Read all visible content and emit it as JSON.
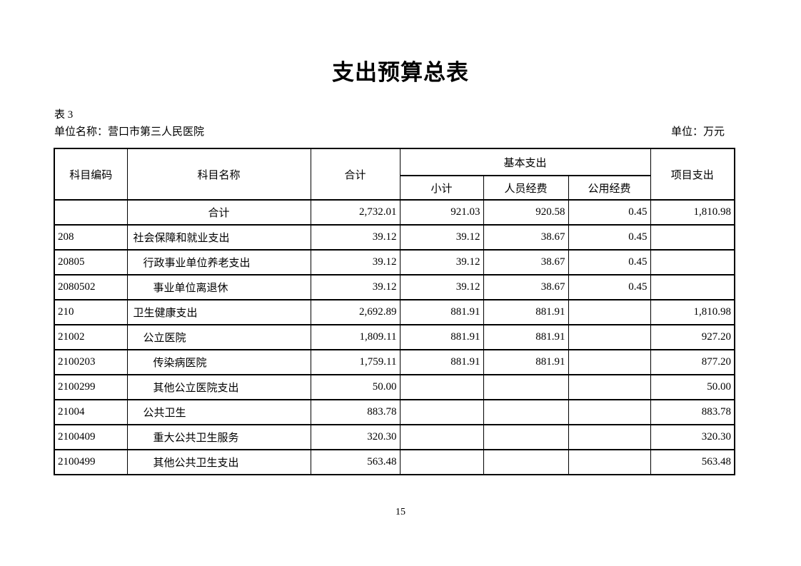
{
  "page": {
    "title": "支出预算总表",
    "table_label": "表 3",
    "unit_name": "单位名称：营口市第三人民医院",
    "unit_of_measure": "单位：万元",
    "page_number": "15"
  },
  "table": {
    "headers": {
      "code": "科目编码",
      "name": "科目名称",
      "total": "合计",
      "basic_group": "基本支出",
      "basic_subtotal": "小计",
      "personnel": "人员经费",
      "public_funds": "公用经费",
      "project": "项目支出"
    },
    "rows": [
      {
        "code": "",
        "name": "合计",
        "indent": 0,
        "name_align": "center",
        "total": "2,732.01",
        "subtotal": "921.03",
        "personnel": "920.58",
        "public": "0.45",
        "project": "1,810.98"
      },
      {
        "code": "208",
        "name": "社会保障和就业支出",
        "indent": 1,
        "name_align": "left",
        "total": "39.12",
        "subtotal": "39.12",
        "personnel": "38.67",
        "public": "0.45",
        "project": ""
      },
      {
        "code": "20805",
        "name": "行政事业单位养老支出",
        "indent": 2,
        "name_align": "left",
        "total": "39.12",
        "subtotal": "39.12",
        "personnel": "38.67",
        "public": "0.45",
        "project": ""
      },
      {
        "code": "2080502",
        "name": "事业单位离退休",
        "indent": 3,
        "name_align": "left",
        "total": "39.12",
        "subtotal": "39.12",
        "personnel": "38.67",
        "public": "0.45",
        "project": ""
      },
      {
        "code": "210",
        "name": "卫生健康支出",
        "indent": 1,
        "name_align": "left",
        "total": "2,692.89",
        "subtotal": "881.91",
        "personnel": "881.91",
        "public": "",
        "project": "1,810.98"
      },
      {
        "code": "21002",
        "name": "公立医院",
        "indent": 2,
        "name_align": "left",
        "total": "1,809.11",
        "subtotal": "881.91",
        "personnel": "881.91",
        "public": "",
        "project": "927.20"
      },
      {
        "code": "2100203",
        "name": "传染病医院",
        "indent": 3,
        "name_align": "left",
        "total": "1,759.11",
        "subtotal": "881.91",
        "personnel": "881.91",
        "public": "",
        "project": "877.20"
      },
      {
        "code": "2100299",
        "name": "其他公立医院支出",
        "indent": 3,
        "name_align": "left",
        "total": "50.00",
        "subtotal": "",
        "personnel": "",
        "public": "",
        "project": "50.00"
      },
      {
        "code": "21004",
        "name": "公共卫生",
        "indent": 2,
        "name_align": "left",
        "total": "883.78",
        "subtotal": "",
        "personnel": "",
        "public": "",
        "project": "883.78"
      },
      {
        "code": "2100409",
        "name": "重大公共卫生服务",
        "indent": 3,
        "name_align": "left",
        "total": "320.30",
        "subtotal": "",
        "personnel": "",
        "public": "",
        "project": "320.30"
      },
      {
        "code": "2100499",
        "name": "其他公共卫生支出",
        "indent": 3,
        "name_align": "left",
        "total": "563.48",
        "subtotal": "",
        "personnel": "",
        "public": "",
        "project": "563.48"
      }
    ]
  }
}
